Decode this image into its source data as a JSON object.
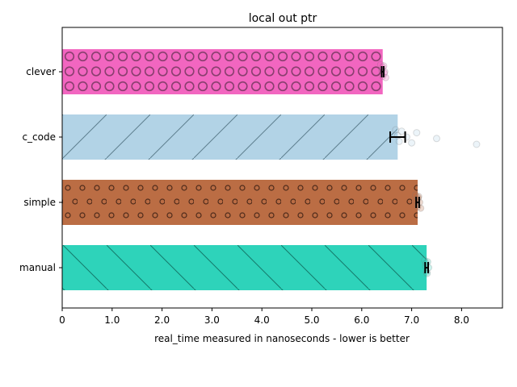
{
  "chart_data": {
    "type": "bar",
    "orientation": "horizontal",
    "title": "local out ptr",
    "xlabel": "real_time measured in nanoseconds - lower is better",
    "ylabel": "",
    "xlim": [
      0,
      8.8
    ],
    "xticks": [
      "0",
      "1.0",
      "2.0",
      "3.0",
      "4.0",
      "5.0",
      "6.0",
      "7.0",
      "8.0"
    ],
    "grid": false,
    "legend": "none",
    "categories": [
      "clever",
      "c_code",
      "simple",
      "manual"
    ],
    "values": [
      6.42,
      6.72,
      7.12,
      7.3
    ],
    "errors": [
      0.02,
      0.15,
      0.03,
      0.03
    ],
    "colors": [
      "#f266c0",
      "#b2d3e6",
      "#bb6d44",
      "#2ed3ba"
    ],
    "hatches": [
      "circles",
      "diagonal",
      "dots",
      "diagonal"
    ],
    "scatter_points": [
      [
        6.38,
        6.4,
        6.42,
        6.44,
        6.46,
        6.48,
        6.42,
        6.45
      ],
      [
        6.68,
        6.72,
        6.75,
        6.8,
        6.9,
        7.0,
        7.1,
        7.5,
        8.3
      ],
      [
        7.08,
        7.1,
        7.12,
        7.14,
        7.16,
        7.18,
        7.13
      ],
      [
        7.26,
        7.28,
        7.3,
        7.32,
        7.34,
        7.31,
        7.29
      ]
    ]
  }
}
